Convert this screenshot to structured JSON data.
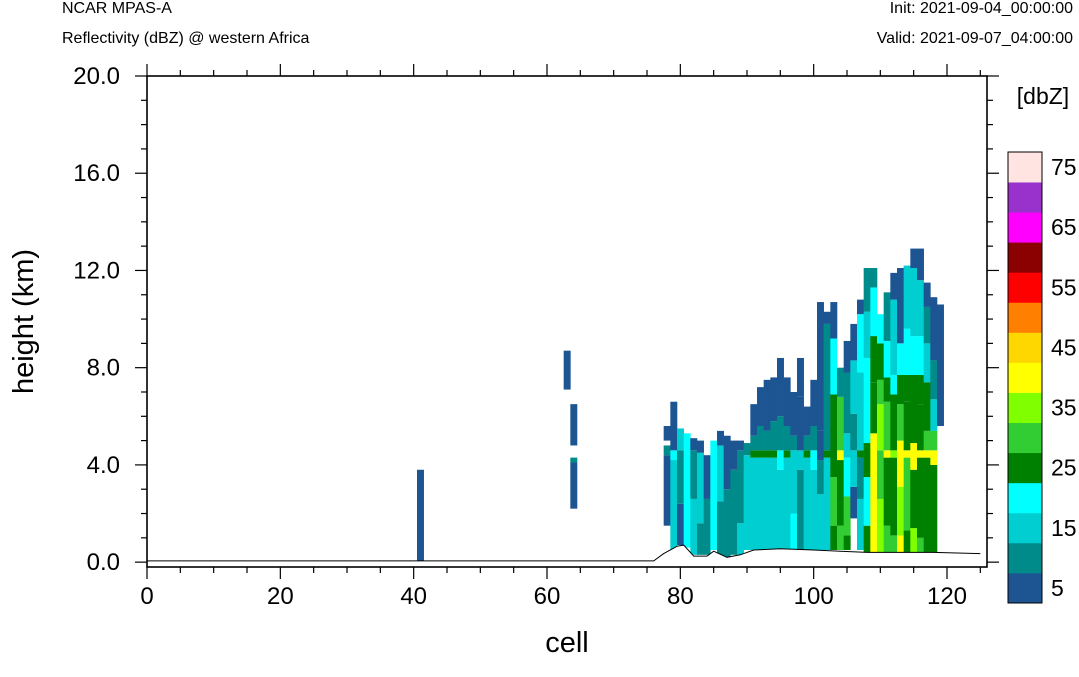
{
  "header": {
    "model": "NCAR MPAS-A",
    "field": "Reflectivity (dBZ) @ western Africa",
    "init": "Init: 2021-09-04_00:00:00",
    "valid": "Valid: 2021-09-07_04:00:00"
  },
  "chart_data": {
    "type": "heatmap",
    "xlabel": "cell",
    "ylabel": "height (km)",
    "xlim": [
      0,
      126
    ],
    "ylim": [
      -0.2,
      20.0
    ],
    "x_ticks": [
      0,
      20,
      40,
      60,
      80,
      100,
      120
    ],
    "y_ticks": [
      0.0,
      4.0,
      8.0,
      12.0,
      16.0,
      20.0
    ],
    "y_tick_labels": [
      "0.0",
      "4.0",
      "8.0",
      "12.0",
      "16.0",
      "20.0"
    ],
    "colorbar": {
      "unit_label": "[dbZ]",
      "levels": [
        5,
        10,
        15,
        20,
        25,
        30,
        35,
        40,
        45,
        50,
        55,
        60,
        65,
        70,
        75
      ],
      "tick_labels": [
        "5",
        "15",
        "25",
        "35",
        "45",
        "55",
        "65",
        "75"
      ],
      "colors": [
        "#1d5592",
        "#008b8b",
        "#00ced1",
        "#00ffff",
        "#008000",
        "#32cd32",
        "#7fff00",
        "#ffff00",
        "#ffd700",
        "#ff8000",
        "#ff0000",
        "#8b0000",
        "#ff00ff",
        "#9932cc",
        "#ffe4e1"
      ]
    },
    "terrain_km": [
      [
        0,
        0.05
      ],
      [
        76,
        0.05
      ],
      [
        77.5,
        0.35
      ],
      [
        79.5,
        0.65
      ],
      [
        80.5,
        0.7
      ],
      [
        82,
        0.25
      ],
      [
        84,
        0.25
      ],
      [
        85,
        0.45
      ],
      [
        87,
        0.2
      ],
      [
        89,
        0.3
      ],
      [
        91,
        0.5
      ],
      [
        95,
        0.55
      ],
      [
        100,
        0.5
      ],
      [
        104,
        0.45
      ],
      [
        108,
        0.4
      ],
      [
        118,
        0.4
      ],
      [
        125,
        0.35
      ]
    ],
    "columns": [
      {
        "x": 41,
        "layers": [
          [
            0.05,
            3.8,
            5
          ]
        ]
      },
      {
        "x": 63,
        "layers": [
          [
            7.1,
            8.7,
            5
          ]
        ]
      },
      {
        "x": 64,
        "layers": [
          [
            2.2,
            4.1,
            5
          ],
          [
            4.1,
            4.3,
            10
          ],
          [
            4.8,
            6.5,
            5
          ]
        ]
      },
      {
        "x": 78,
        "layers": [
          [
            1.5,
            4.4,
            5
          ],
          [
            4.4,
            4.8,
            10
          ],
          [
            5.0,
            5.6,
            5
          ]
        ]
      },
      {
        "x": 79,
        "layers": [
          [
            0.5,
            4.2,
            15
          ],
          [
            4.2,
            4.6,
            20
          ],
          [
            4.6,
            6.6,
            5
          ]
        ]
      },
      {
        "x": 80,
        "layers": [
          [
            0.7,
            2.4,
            5
          ],
          [
            2.4,
            4.6,
            10
          ],
          [
            4.6,
            5.5,
            15
          ]
        ]
      },
      {
        "x": 81,
        "layers": [
          [
            0.6,
            5.3,
            20
          ]
        ]
      },
      {
        "x": 82,
        "layers": [
          [
            0.3,
            2.6,
            15
          ],
          [
            2.6,
            4.6,
            10
          ],
          [
            4.6,
            5.1,
            5
          ]
        ]
      },
      {
        "x": 83,
        "layers": [
          [
            0.3,
            1.6,
            10
          ],
          [
            1.6,
            4.5,
            15
          ],
          [
            4.5,
            5.0,
            5
          ]
        ]
      },
      {
        "x": 84,
        "layers": [
          [
            0.3,
            2.6,
            10
          ],
          [
            2.6,
            4.4,
            5
          ]
        ]
      },
      {
        "x": 85,
        "layers": [
          [
            0.5,
            5.0,
            20
          ]
        ]
      },
      {
        "x": 86,
        "layers": [
          [
            0.2,
            2.5,
            10
          ],
          [
            2.5,
            4.8,
            15
          ],
          [
            4.8,
            5.4,
            5
          ]
        ]
      },
      {
        "x": 87,
        "layers": [
          [
            0.2,
            3.0,
            10
          ],
          [
            3.0,
            5.2,
            5
          ]
        ]
      },
      {
        "x": 88,
        "layers": [
          [
            0.3,
            3.8,
            10
          ],
          [
            3.8,
            5.0,
            5
          ]
        ]
      },
      {
        "x": 89,
        "layers": [
          [
            0.3,
            1.6,
            15
          ],
          [
            1.6,
            4.6,
            10
          ],
          [
            4.6,
            5.0,
            5
          ]
        ]
      },
      {
        "x": 90,
        "layers": [
          [
            0.5,
            4.4,
            15
          ],
          [
            4.4,
            4.9,
            10
          ]
        ]
      },
      {
        "x": 91,
        "layers": [
          [
            0.5,
            4.3,
            15
          ],
          [
            4.3,
            4.6,
            25
          ],
          [
            4.6,
            5.2,
            10
          ],
          [
            5.2,
            6.5,
            5
          ]
        ]
      },
      {
        "x": 92,
        "layers": [
          [
            0.5,
            4.3,
            15
          ],
          [
            4.3,
            4.6,
            25
          ],
          [
            4.6,
            5.6,
            10
          ],
          [
            5.6,
            7.2,
            5
          ]
        ]
      },
      {
        "x": 93,
        "layers": [
          [
            0.5,
            4.3,
            15
          ],
          [
            4.3,
            4.6,
            25
          ],
          [
            4.6,
            5.4,
            10
          ],
          [
            5.4,
            7.5,
            5
          ]
        ]
      },
      {
        "x": 94,
        "layers": [
          [
            0.5,
            4.3,
            15
          ],
          [
            4.3,
            4.6,
            25
          ],
          [
            4.6,
            5.8,
            10
          ],
          [
            5.8,
            7.6,
            5
          ]
        ]
      },
      {
        "x": 95,
        "layers": [
          [
            0.5,
            3.8,
            15
          ],
          [
            3.8,
            4.6,
            20
          ],
          [
            4.6,
            6.0,
            10
          ],
          [
            6.0,
            8.4,
            5
          ]
        ]
      },
      {
        "x": 96,
        "layers": [
          [
            0.5,
            4.3,
            15
          ],
          [
            4.3,
            4.6,
            25
          ],
          [
            4.6,
            5.6,
            10
          ],
          [
            5.6,
            7.6,
            5
          ]
        ]
      },
      {
        "x": 97,
        "layers": [
          [
            0.5,
            2.0,
            20
          ],
          [
            2.0,
            4.6,
            15
          ],
          [
            4.6,
            5.2,
            10
          ],
          [
            5.2,
            7.0,
            5
          ]
        ]
      },
      {
        "x": 98,
        "layers": [
          [
            0.5,
            3.8,
            10
          ],
          [
            3.8,
            4.6,
            15
          ],
          [
            4.6,
            6.8,
            5
          ],
          [
            6.8,
            8.4,
            5
          ]
        ]
      },
      {
        "x": 99,
        "layers": [
          [
            0.5,
            4.3,
            15
          ],
          [
            4.3,
            4.6,
            25
          ],
          [
            4.6,
            5.2,
            10
          ],
          [
            5.2,
            6.4,
            5
          ]
        ]
      },
      {
        "x": 100,
        "layers": [
          [
            0.5,
            3.8,
            15
          ],
          [
            3.8,
            4.6,
            20
          ],
          [
            4.6,
            5.6,
            10
          ],
          [
            5.6,
            7.5,
            5
          ]
        ]
      },
      {
        "x": 101,
        "layers": [
          [
            0.5,
            2.8,
            15
          ],
          [
            2.8,
            4.2,
            10
          ],
          [
            4.2,
            5.4,
            5
          ],
          [
            5.4,
            10.7,
            5
          ]
        ]
      },
      {
        "x": 102,
        "layers": [
          [
            0.5,
            4.3,
            15
          ],
          [
            4.3,
            4.6,
            25
          ],
          [
            4.6,
            9.8,
            10
          ],
          [
            9.8,
            10.3,
            5
          ]
        ]
      },
      {
        "x": 103,
        "layers": [
          [
            0.5,
            1.5,
            25
          ],
          [
            1.5,
            3.5,
            30
          ],
          [
            3.5,
            6.9,
            25
          ],
          [
            6.9,
            9.2,
            20
          ],
          [
            9.2,
            10.7,
            5
          ]
        ]
      },
      {
        "x": 104,
        "layers": [
          [
            0.5,
            1.5,
            30
          ],
          [
            1.5,
            4.2,
            25
          ],
          [
            4.2,
            4.6,
            40
          ],
          [
            4.6,
            6.8,
            30
          ],
          [
            6.8,
            8.0,
            10
          ]
        ]
      },
      {
        "x": 105,
        "layers": [
          [
            0.5,
            1.1,
            25
          ],
          [
            1.1,
            2.7,
            30
          ],
          [
            2.7,
            4.3,
            20
          ],
          [
            4.3,
            5.3,
            15
          ],
          [
            5.3,
            7.8,
            10
          ],
          [
            7.8,
            9.1,
            5
          ]
        ]
      },
      {
        "x": 106,
        "layers": [
          [
            1.8,
            3.1,
            5
          ],
          [
            3.1,
            4.6,
            15
          ],
          [
            4.6,
            6.1,
            10
          ],
          [
            6.1,
            8.3,
            15
          ],
          [
            8.3,
            9.8,
            5
          ]
        ]
      },
      {
        "x": 107,
        "layers": [
          [
            0.5,
            2.6,
            15
          ],
          [
            2.6,
            4.3,
            10
          ],
          [
            4.3,
            4.6,
            25
          ],
          [
            4.6,
            7.8,
            15
          ],
          [
            7.8,
            10.2,
            20
          ],
          [
            10.2,
            10.8,
            5
          ]
        ]
      },
      {
        "x": 108,
        "layers": [
          [
            0.4,
            1.5,
            25
          ],
          [
            1.5,
            3.5,
            20
          ],
          [
            3.5,
            4.9,
            25
          ],
          [
            4.9,
            8.4,
            20
          ],
          [
            8.4,
            10.3,
            15
          ],
          [
            10.3,
            12.1,
            10
          ]
        ]
      },
      {
        "x": 109,
        "layers": [
          [
            0.4,
            1.6,
            40
          ],
          [
            1.6,
            4.3,
            40
          ],
          [
            4.3,
            5.3,
            40
          ],
          [
            5.3,
            7.4,
            25
          ],
          [
            7.4,
            9.3,
            25
          ],
          [
            9.3,
            11.3,
            20
          ],
          [
            11.3,
            12.1,
            10
          ]
        ]
      },
      {
        "x": 110,
        "layers": [
          [
            0.4,
            2.6,
            35
          ],
          [
            2.6,
            4.6,
            30
          ],
          [
            4.6,
            6.5,
            35
          ],
          [
            6.5,
            7.5,
            30
          ],
          [
            7.5,
            9.0,
            25
          ],
          [
            9.0,
            10.2,
            20
          ]
        ]
      },
      {
        "x": 111,
        "layers": [
          [
            0.4,
            1.5,
            30
          ],
          [
            1.5,
            4.3,
            25
          ],
          [
            4.3,
            4.6,
            40
          ],
          [
            4.6,
            6.6,
            30
          ],
          [
            6.6,
            7.6,
            25
          ],
          [
            7.6,
            9.1,
            20
          ],
          [
            9.1,
            11.1,
            10
          ]
        ]
      },
      {
        "x": 112,
        "layers": [
          [
            0.4,
            1.1,
            30
          ],
          [
            1.1,
            4.3,
            25
          ],
          [
            4.3,
            4.6,
            35
          ],
          [
            4.6,
            6.9,
            25
          ],
          [
            6.9,
            7.7,
            20
          ],
          [
            7.7,
            10.8,
            15
          ],
          [
            10.8,
            11.9,
            5
          ]
        ]
      },
      {
        "x": 113,
        "layers": [
          [
            0.4,
            1.1,
            40
          ],
          [
            1.1,
            3.1,
            35
          ],
          [
            3.1,
            5.0,
            40
          ],
          [
            5.0,
            6.5,
            30
          ],
          [
            6.5,
            7.7,
            25
          ],
          [
            7.7,
            9.0,
            20
          ],
          [
            9.0,
            12.1,
            5
          ]
        ]
      },
      {
        "x": 114,
        "layers": [
          [
            0.4,
            1.3,
            25
          ],
          [
            1.3,
            4.3,
            30
          ],
          [
            4.3,
            4.6,
            40
          ],
          [
            4.6,
            6.6,
            25
          ],
          [
            6.6,
            7.7,
            25
          ],
          [
            7.7,
            9.6,
            20
          ],
          [
            9.6,
            12.2,
            15
          ]
        ]
      },
      {
        "x": 115,
        "layers": [
          [
            0.4,
            1.4,
            35
          ],
          [
            1.4,
            3.8,
            25
          ],
          [
            3.8,
            4.9,
            40
          ],
          [
            4.9,
            7.0,
            25
          ],
          [
            7.0,
            7.7,
            25
          ],
          [
            7.7,
            9.3,
            20
          ],
          [
            9.3,
            12.1,
            15
          ],
          [
            12.1,
            12.9,
            5
          ]
        ]
      },
      {
        "x": 116,
        "layers": [
          [
            0.4,
            1.0,
            30
          ],
          [
            1.0,
            4.3,
            25
          ],
          [
            4.3,
            4.6,
            40
          ],
          [
            4.6,
            6.5,
            25
          ],
          [
            6.5,
            7.7,
            25
          ],
          [
            7.7,
            9.3,
            20
          ],
          [
            9.3,
            11.6,
            15
          ],
          [
            11.6,
            12.9,
            5
          ]
        ]
      },
      {
        "x": 117,
        "layers": [
          [
            0.4,
            4.3,
            25
          ],
          [
            4.3,
            4.6,
            40
          ],
          [
            4.6,
            5.4,
            30
          ],
          [
            5.4,
            7.4,
            25
          ],
          [
            7.4,
            9.0,
            15
          ],
          [
            9.0,
            10.5,
            10
          ],
          [
            10.5,
            11.5,
            5
          ]
        ]
      },
      {
        "x": 118,
        "layers": [
          [
            0.4,
            4.0,
            25
          ],
          [
            4.0,
            4.6,
            40
          ],
          [
            4.6,
            5.4,
            30
          ],
          [
            5.4,
            6.7,
            15
          ],
          [
            6.7,
            8.3,
            10
          ],
          [
            8.3,
            10.9,
            5
          ]
        ]
      },
      {
        "x": 119,
        "layers": [
          [
            5.6,
            10.6,
            5
          ]
        ]
      }
    ]
  }
}
